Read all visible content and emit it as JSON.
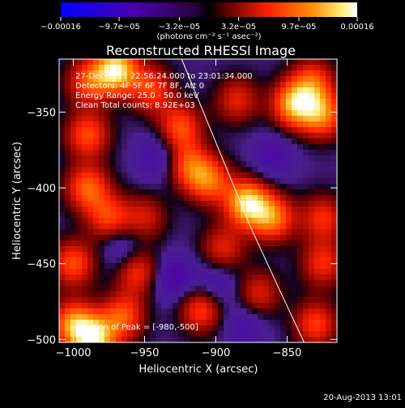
{
  "chart_data": {
    "type": "heatmap",
    "title": "Reconstructed RHESSI Image",
    "xlabel": "Heliocentric X (arcsec)",
    "ylabel": "Heliocentric Y (arcsec)",
    "xlim": [
      -1010,
      -815
    ],
    "ylim": [
      -502,
      -315
    ],
    "xticks": [
      -1000,
      -950,
      -900,
      -850
    ],
    "yticks": [
      -350,
      -400,
      -450,
      -500
    ],
    "xtick_labels": [
      "−1000",
      "−950",
      "−900",
      "−850"
    ],
    "ytick_labels": [
      "−350",
      "−400",
      "−450",
      "−500"
    ],
    "colorbar": {
      "min": -0.00016,
      "max": 0.00016,
      "ticks": [
        -0.00016,
        -9.7e-05,
        -3.2e-05,
        3.2e-05,
        9.7e-05,
        0.00016
      ],
      "tick_labels": [
        "−0.00016",
        "−9.7e−05",
        "−3.2e−05",
        "3.2e−05",
        "9.7e−05",
        "0.00016"
      ],
      "units": "(photons cm⁻² s⁻¹ asec⁻²)"
    },
    "annotations": [
      "27-Dec-2011 22:56:24.000 to 23:01:34.000",
      "Detectors: 4F 5F 6F 7F 8F, Att 0",
      "Energy Range: 25.0 - 50.0 keV",
      "Clean     Total counts: 8.92E+03"
    ],
    "peak_label": "Position of Peak = [-980,-500]",
    "peak": [
      -980,
      -500
    ],
    "limb_points": [
      [
        -924,
        -315
      ],
      [
        -900,
        -370
      ],
      [
        -876,
        -425
      ],
      [
        -853,
        -472
      ],
      [
        -838,
        -502
      ]
    ],
    "grid": false,
    "hotspots": [
      {
        "x": -970,
        "y": -322,
        "v": 1.0
      },
      {
        "x": -945,
        "y": -335,
        "v": 0.55
      },
      {
        "x": -990,
        "y": -330,
        "v": 0.55
      },
      {
        "x": -845,
        "y": -345,
        "v": 0.85
      },
      {
        "x": -832,
        "y": -330,
        "v": 0.55
      },
      {
        "x": -825,
        "y": -352,
        "v": 0.7
      },
      {
        "x": -990,
        "y": -365,
        "v": 0.6
      },
      {
        "x": -925,
        "y": -360,
        "v": 0.6
      },
      {
        "x": -885,
        "y": -342,
        "v": 0.45
      },
      {
        "x": -990,
        "y": -400,
        "v": 0.65
      },
      {
        "x": -975,
        "y": -420,
        "v": 0.55
      },
      {
        "x": -905,
        "y": -395,
        "v": 0.65
      },
      {
        "x": -920,
        "y": -385,
        "v": 0.55
      },
      {
        "x": -878,
        "y": -410,
        "v": 0.95
      },
      {
        "x": -860,
        "y": -420,
        "v": 0.7
      },
      {
        "x": -950,
        "y": -420,
        "v": 0.4
      },
      {
        "x": -1000,
        "y": -450,
        "v": 0.6
      },
      {
        "x": -955,
        "y": -455,
        "v": 0.55
      },
      {
        "x": -895,
        "y": -440,
        "v": 0.45
      },
      {
        "x": -825,
        "y": -420,
        "v": 0.5
      },
      {
        "x": -825,
        "y": -450,
        "v": 0.5
      },
      {
        "x": -1000,
        "y": -490,
        "v": 0.75
      },
      {
        "x": -965,
        "y": -485,
        "v": 0.6
      },
      {
        "x": -910,
        "y": -480,
        "v": 0.6
      },
      {
        "x": -870,
        "y": -470,
        "v": 0.45
      },
      {
        "x": -830,
        "y": -490,
        "v": 0.55
      },
      {
        "x": -985,
        "y": -500,
        "v": 0.9
      },
      {
        "x": -940,
        "y": -380,
        "v": -0.3
      },
      {
        "x": -930,
        "y": -460,
        "v": -0.35
      },
      {
        "x": -900,
        "y": -465,
        "v": -0.3
      },
      {
        "x": -965,
        "y": -440,
        "v": -0.3
      },
      {
        "x": -880,
        "y": -490,
        "v": -0.25
      },
      {
        "x": -860,
        "y": -380,
        "v": -0.25
      }
    ]
  },
  "footer": {
    "timestamp": "20-Aug-2013 13:01"
  }
}
